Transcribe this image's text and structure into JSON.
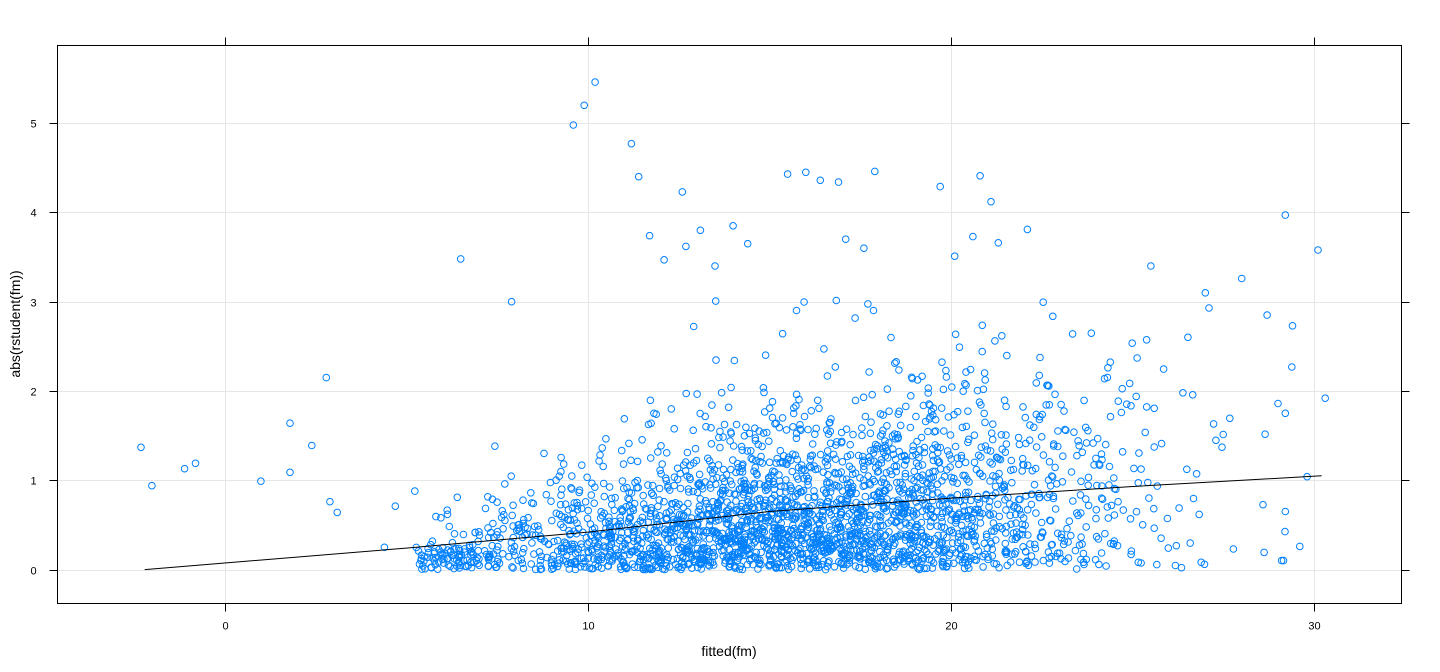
{
  "chart_data": {
    "type": "scatter",
    "title": "",
    "xlabel": "fitted(fm)",
    "ylabel": "abs(rstudent(fm))",
    "xlim": [
      -4.6,
      32.4
    ],
    "ylim": [
      -0.38,
      5.87
    ],
    "x_ticks": [
      0,
      10,
      20,
      30
    ],
    "y_ticks": [
      0,
      1,
      2,
      3,
      4,
      5
    ],
    "x_tick_labels": [
      "0",
      "10",
      "20",
      "30"
    ],
    "y_tick_labels": [
      "0",
      "1",
      "2",
      "3",
      "4",
      "5"
    ],
    "grid": true,
    "legend": null,
    "marker": "open-circle",
    "point_color": "#0080ff",
    "line_color": "#000000",
    "grid_color": "#e6e6e6",
    "smooth_line": {
      "type": "loess",
      "points": [
        [
          -2.2,
          0.0
        ],
        [
          5,
          0.24
        ],
        [
          10,
          0.42
        ],
        [
          15,
          0.65
        ],
        [
          20,
          0.8
        ],
        [
          25,
          0.93
        ],
        [
          30.2,
          1.05
        ]
      ]
    },
    "notable_points": [
      [
        10.2,
        5.46
      ],
      [
        9.9,
        5.2
      ],
      [
        9.6,
        4.98
      ],
      [
        11.2,
        4.77
      ],
      [
        11.4,
        4.4
      ],
      [
        12.6,
        4.23
      ],
      [
        15.5,
        4.43
      ],
      [
        16.0,
        4.45
      ],
      [
        16.4,
        4.36
      ],
      [
        16.9,
        4.34
      ],
      [
        17.9,
        4.46
      ],
      [
        19.7,
        4.29
      ],
      [
        20.8,
        4.41
      ],
      [
        21.1,
        4.12
      ],
      [
        29.2,
        3.97
      ],
      [
        30.1,
        3.58
      ],
      [
        6.5,
        3.48
      ],
      [
        7.9,
        3.0
      ],
      [
        2.8,
        2.15
      ],
      [
        1.8,
        1.64
      ],
      [
        2.4,
        1.39
      ],
      [
        1.8,
        1.09
      ],
      [
        1.0,
        0.99
      ],
      [
        -2.3,
        1.37
      ],
      [
        -2.0,
        0.94
      ],
      [
        -1.1,
        1.13
      ],
      [
        -0.8,
        1.19
      ],
      [
        2.9,
        0.76
      ],
      [
        3.1,
        0.64
      ],
      [
        4.4,
        0.25
      ],
      [
        4.7,
        0.71
      ],
      [
        25.5,
        3.4
      ],
      [
        28.0,
        3.26
      ],
      [
        27.0,
        3.1
      ],
      [
        27.1,
        2.93
      ],
      [
        29.4,
        2.73
      ],
      [
        28.7,
        2.85
      ],
      [
        29.0,
        1.86
      ],
      [
        29.2,
        1.75
      ],
      [
        30.3,
        1.92
      ],
      [
        29.8,
        1.04
      ],
      [
        29.2,
        0.65
      ],
      [
        29.6,
        0.26
      ],
      [
        29.1,
        0.1
      ],
      [
        11.7,
        3.74
      ],
      [
        12.7,
        3.62
      ],
      [
        12.1,
        3.47
      ],
      [
        13.1,
        3.8
      ],
      [
        14.0,
        3.85
      ],
      [
        14.4,
        3.65
      ],
      [
        13.5,
        3.4
      ],
      [
        17.1,
        3.7
      ],
      [
        17.6,
        3.6
      ],
      [
        20.6,
        3.73
      ],
      [
        21.3,
        3.66
      ],
      [
        22.1,
        3.81
      ],
      [
        20.1,
        3.51
      ]
    ],
    "dense_cloud": {
      "n": 2600,
      "x_mean": 16.0,
      "x_sd": 4.6,
      "x_range": [
        5.2,
        29.5
      ],
      "y_distribution": "abs(t-like), scale rising with x",
      "seed": 7
    }
  }
}
